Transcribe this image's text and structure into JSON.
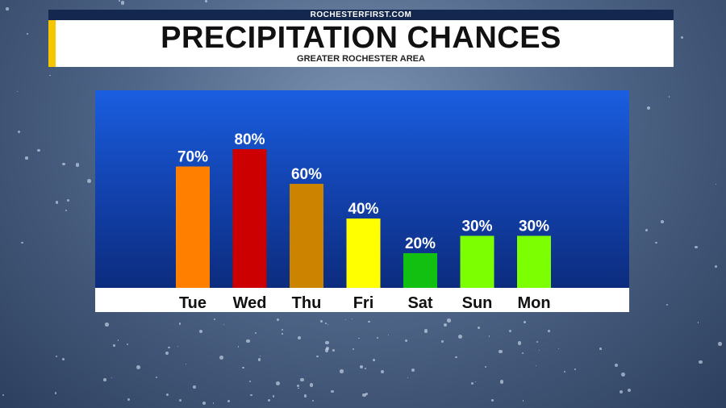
{
  "header": {
    "brand": "ROCHESTERFIRST.COM",
    "title": "PRECIPITATION CHANCES",
    "subtitle": "GREATER ROCHESTER AREA"
  },
  "chart_data": {
    "type": "bar",
    "categories": [
      "Tue",
      "Wed",
      "Thu",
      "Fri",
      "Sat",
      "Sun",
      "Mon"
    ],
    "values": [
      70,
      80,
      60,
      40,
      20,
      30,
      30
    ],
    "data_labels": [
      "70%",
      "80%",
      "60%",
      "40%",
      "20%",
      "30%",
      "30%"
    ],
    "bar_colors": [
      "#ff7f00",
      "#cc0000",
      "#cc8400",
      "#ffff00",
      "#11c011",
      "#7cff00",
      "#7cff00"
    ],
    "ylim": [
      0,
      80
    ],
    "grid": false,
    "legend": "none"
  }
}
